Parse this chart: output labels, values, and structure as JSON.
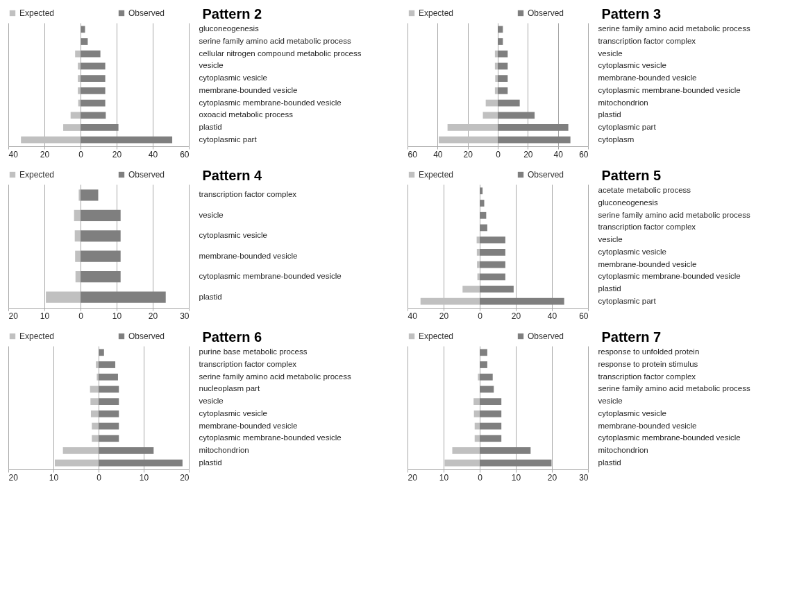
{
  "chart_data": [
    {
      "type": "bar",
      "title": "Pattern 2",
      "orientation": "horizontal",
      "stacked": true,
      "legend": "top",
      "grid": "x",
      "categories": [
        "gluconeogenesis",
        "serine family amino acid metabolic process",
        "cellular nitrogen compound metabolic process",
        "vesicle",
        "cytoplasmic vesicle",
        "membrane-bounded vesicle",
        "cytoplasmic membrane-bounded vesicle",
        "oxoacid metabolic process",
        "plastid",
        "cytoplasmic part"
      ],
      "series": [
        {
          "name": "Expected",
          "color": "#c0c0c0",
          "values": [
            0,
            0,
            -3,
            -1.5,
            -1.5,
            -1.5,
            -1.3,
            -5.5,
            -9.6,
            -33
          ]
        },
        {
          "name": "Observed",
          "color": "#7f7f7f",
          "values": [
            2.5,
            4,
            11,
            13.7,
            13.7,
            13.7,
            13.7,
            14,
            21,
            50.8
          ]
        }
      ],
      "xlim": [
        -40,
        60
      ],
      "xticks": [
        {
          "value": -40,
          "label": "40"
        },
        {
          "value": -20,
          "label": "20"
        },
        0,
        20,
        40,
        60
      ]
    },
    {
      "type": "bar",
      "title": "Pattern 3",
      "orientation": "horizontal",
      "stacked": true,
      "legend": "top",
      "grid": "x",
      "categories": [
        "serine family amino acid metabolic process",
        "transcription factor complex",
        "vesicle",
        "cytoplasmic vesicle",
        "membrane-bounded vesicle",
        "cytoplasmic membrane-bounded vesicle",
        "mitochondrion",
        "plastid",
        "cytoplasmic part",
        "cytoplasm"
      ],
      "series": [
        {
          "name": "Expected",
          "color": "#c0c0c0",
          "values": [
            null,
            null,
            -1.9,
            -1.9,
            -1.7,
            -1.9,
            -8,
            -9.9,
            -33.4,
            -39.2
          ]
        },
        {
          "name": "Observed",
          "color": "#7f7f7f",
          "values": [
            3.4,
            3.4,
            6.6,
            6.6,
            6.6,
            6.6,
            14.6,
            24.5,
            46.9,
            48.3
          ]
        }
      ],
      "xlim": [
        -60,
        60
      ],
      "xticks": [
        {
          "value": -60,
          "label": "60"
        },
        {
          "value": -40,
          "label": "40"
        },
        {
          "value": -20,
          "label": "20"
        },
        0,
        20,
        40,
        60
      ]
    },
    {
      "type": "bar",
      "title": "Pattern 4",
      "orientation": "horizontal",
      "stacked": true,
      "legend": "top",
      "grid": "x",
      "categories": [
        "transcription factor complex",
        "vesicle",
        "cytoplasmic vesicle",
        "membrane-bounded vesicle",
        "cytoplasmic membrane-bounded vesicle",
        "plastid"
      ],
      "series": [
        {
          "name": "Expected",
          "color": "#c0c0c0",
          "values": [
            -0.5,
            -1.8,
            -1.6,
            -1.5,
            -1.4,
            -9.6
          ]
        },
        {
          "name": "Observed",
          "color": "#7f7f7f",
          "values": [
            4.9,
            11.1,
            11.1,
            11.1,
            11.1,
            23.6
          ]
        }
      ],
      "xlim": [
        -20,
        30
      ],
      "xticks": [
        {
          "value": -20,
          "label": "20"
        },
        {
          "value": -10,
          "label": "10"
        },
        0,
        10,
        20,
        30
      ]
    },
    {
      "type": "bar",
      "title": "Pattern 5",
      "orientation": "horizontal",
      "stacked": true,
      "legend": "top",
      "grid": "x",
      "categories": [
        "acetate metabolic process",
        "gluconeogenesis",
        "serine family amino acid metabolic process",
        "transcription factor complex",
        "vesicle",
        "cytoplasmic vesicle",
        "membrane-bounded vesicle",
        "cytoplasmic membrane-bounded vesicle",
        "plastid",
        "cytoplasmic part"
      ],
      "series": [
        {
          "name": "Expected",
          "color": "#c0c0c0",
          "values": [
            0,
            0,
            0,
            0,
            -1.7,
            -1.6,
            -1.5,
            -1.3,
            -9.5,
            -32.8
          ]
        },
        {
          "name": "Observed",
          "color": "#7f7f7f",
          "values": [
            1.6,
            2.5,
            3.6,
            4.2,
            14.2,
            14.2,
            14.2,
            14.2,
            18.8,
            46.8
          ]
        }
      ],
      "xlim": [
        -40,
        60
      ],
      "xticks": [
        {
          "value": -40,
          "label": "40"
        },
        {
          "value": -20,
          "label": "20"
        },
        0,
        20,
        40,
        60
      ]
    },
    {
      "type": "bar",
      "title": "Pattern 6",
      "orientation": "horizontal",
      "stacked": true,
      "legend": "top",
      "grid": "x",
      "categories": [
        "purine base metabolic process",
        "transcription factor complex",
        "serine family amino acid metabolic process",
        "nucleoplasm part",
        "vesicle",
        "cytoplasmic vesicle",
        "membrane-bounded vesicle",
        "cytoplasmic membrane-bounded vesicle",
        "mitochondrion",
        "plastid"
      ],
      "series": [
        {
          "name": "Expected",
          "color": "#c0c0c0",
          "values": [
            0,
            -0.6,
            -0.4,
            -1.9,
            -1.8,
            -1.7,
            -1.5,
            -1.5,
            -7.9,
            -9.7
          ]
        },
        {
          "name": "Observed",
          "color": "#7f7f7f",
          "values": [
            1.2,
            3.7,
            4.3,
            4.5,
            4.5,
            4.5,
            4.5,
            4.5,
            12.2,
            18.6
          ]
        }
      ],
      "xlim": [
        -20,
        20
      ],
      "xticks": [
        {
          "value": -20,
          "label": "20"
        },
        {
          "value": -10,
          "label": "10"
        },
        0,
        10,
        20
      ]
    },
    {
      "type": "bar",
      "title": "Pattern 7",
      "orientation": "horizontal",
      "stacked": true,
      "legend": "top",
      "grid": "x",
      "categories": [
        "response to unfolded protein",
        "response to protein stimulus",
        "transcription factor complex",
        "serine family amino acid metabolic process",
        "vesicle",
        "cytoplasmic vesicle",
        "membrane-bounded vesicle",
        "cytoplasmic membrane-bounded vesicle",
        "mitochondrion",
        "plastid"
      ],
      "series": [
        {
          "name": "Expected",
          "color": "#c0c0c0",
          "values": [
            0,
            0,
            -0.5,
            null,
            -1.7,
            -1.6,
            -1.4,
            -1.4,
            -7.6,
            -9.7
          ]
        },
        {
          "name": "Observed",
          "color": "#7f7f7f",
          "values": [
            2.1,
            2.1,
            3.6,
            3.9,
            6,
            6,
            6,
            6,
            14.1,
            19.9
          ]
        }
      ],
      "xlim": [
        -20,
        30
      ],
      "xticks": [
        {
          "value": -20,
          "label": "20"
        },
        {
          "value": -10,
          "label": "10"
        },
        0,
        10,
        20,
        30
      ]
    }
  ]
}
